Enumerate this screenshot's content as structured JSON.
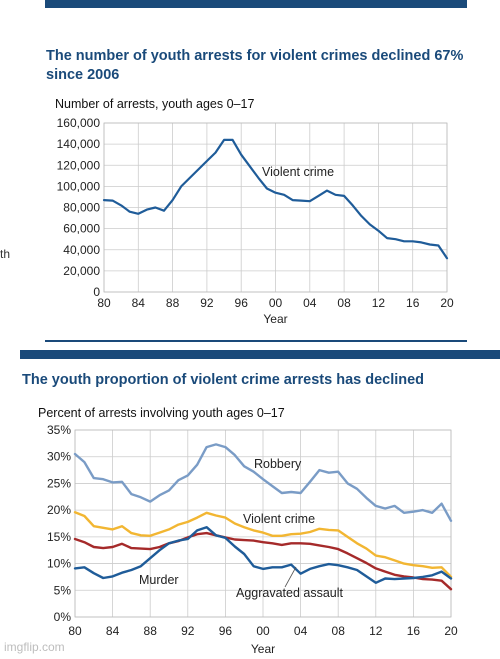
{
  "colors": {
    "header_blue": "#1a4a7a",
    "line_blue": "#1f5c99",
    "robbery": "#7a9cc6",
    "violent": "#f2b632",
    "aggravated": "#a52a2a",
    "murder": "#1f5c99",
    "grid": "#cccccc"
  },
  "page": {
    "left_fragment": "th",
    "watermark": "imgflip.com"
  },
  "chart_data": [
    {
      "type": "line",
      "title": "The number of youth arrests for violent crimes declined 67% since 2006",
      "subtitle": "Number of arrests, youth ages 0–17",
      "xlabel": "Year",
      "ylabel": "",
      "xlim": [
        80,
        120
      ],
      "ylim": [
        0,
        160000
      ],
      "x_ticks": [
        "80",
        "84",
        "88",
        "92",
        "96",
        "00",
        "04",
        "08",
        "12",
        "16",
        "20"
      ],
      "y_ticks": [
        "0",
        "20,000",
        "40,000",
        "60,000",
        "80,000",
        "100,000",
        "120,000",
        "140,000",
        "160,000"
      ],
      "grid": true,
      "series": [
        {
          "name": "Violent crime",
          "x": [
            80,
            81,
            82,
            83,
            84,
            85,
            86,
            87,
            88,
            89,
            90,
            91,
            92,
            93,
            94,
            95,
            96,
            97,
            98,
            99,
            100,
            101,
            102,
            103,
            104,
            105,
            106,
            107,
            108,
            109,
            110,
            111,
            112,
            113,
            114,
            115,
            116,
            117,
            118,
            119,
            120
          ],
          "values": [
            87000,
            86500,
            82000,
            76000,
            74000,
            78000,
            80000,
            77000,
            87000,
            100000,
            108000,
            116000,
            124000,
            132000,
            144000,
            144000,
            130000,
            119000,
            108000,
            98000,
            94000,
            92000,
            87000,
            86500,
            86000,
            91000,
            96000,
            92000,
            91000,
            82000,
            72000,
            64000,
            58000,
            51000,
            50000,
            48000,
            48000,
            47000,
            45000,
            44000,
            32000
          ]
        }
      ]
    },
    {
      "type": "line",
      "title": "The youth proportion of violent crime arrests has declined",
      "subtitle": "Percent of arrests involving youth ages 0–17",
      "xlabel": "Year",
      "ylabel": "",
      "xlim": [
        80,
        120
      ],
      "ylim": [
        0,
        35
      ],
      "x_ticks": [
        "80",
        "84",
        "88",
        "92",
        "96",
        "00",
        "04",
        "08",
        "12",
        "16",
        "20"
      ],
      "y_ticks": [
        "0%",
        "5%",
        "10%",
        "15%",
        "20%",
        "25%",
        "30%",
        "35%"
      ],
      "grid": true,
      "series": [
        {
          "name": "Robbery",
          "x": [
            80,
            81,
            82,
            83,
            84,
            85,
            86,
            87,
            88,
            89,
            90,
            91,
            92,
            93,
            94,
            95,
            96,
            97,
            98,
            99,
            100,
            101,
            102,
            103,
            104,
            105,
            106,
            107,
            108,
            109,
            110,
            111,
            112,
            113,
            114,
            115,
            116,
            117,
            118,
            119,
            120
          ],
          "values": [
            30.5,
            29,
            26,
            25.8,
            25.2,
            25.3,
            23,
            22.4,
            21.6,
            22.8,
            23.7,
            25.6,
            26.5,
            28.5,
            31.8,
            32.3,
            31.8,
            30.3,
            28.2,
            27.2,
            25.8,
            24.5,
            23.2,
            23.4,
            23.2,
            25.3,
            27.5,
            27,
            27.2,
            25,
            24,
            22.3,
            20.8,
            20.3,
            20.8,
            19.5,
            19.7,
            20,
            19.5,
            21.2,
            18
          ]
        },
        {
          "name": "Violent crime",
          "x": [
            80,
            81,
            82,
            83,
            84,
            85,
            86,
            87,
            88,
            89,
            90,
            91,
            92,
            93,
            94,
            95,
            96,
            97,
            98,
            99,
            100,
            101,
            102,
            103,
            104,
            105,
            106,
            107,
            108,
            109,
            110,
            111,
            112,
            113,
            114,
            115,
            116,
            117,
            118,
            119,
            120
          ],
          "values": [
            19.6,
            18.9,
            17,
            16.7,
            16.4,
            17,
            15.7,
            15.3,
            15.2,
            15.8,
            16.4,
            17.3,
            17.8,
            18.6,
            19.5,
            19,
            18.6,
            17.5,
            16.8,
            16.2,
            15.8,
            15.2,
            15.2,
            15.5,
            15.6,
            15.9,
            16.5,
            16.3,
            16.2,
            15,
            13.8,
            12.8,
            11.5,
            11.2,
            10.6,
            10,
            9.7,
            9.5,
            9.2,
            9.3,
            7.5
          ]
        },
        {
          "name": "Aggravated assault",
          "x": [
            80,
            81,
            82,
            83,
            84,
            85,
            86,
            87,
            88,
            89,
            90,
            91,
            92,
            93,
            94,
            95,
            96,
            97,
            98,
            99,
            100,
            101,
            102,
            103,
            104,
            105,
            106,
            107,
            108,
            109,
            110,
            111,
            112,
            113,
            114,
            115,
            116,
            117,
            118,
            119,
            120
          ],
          "values": [
            14.6,
            14,
            13.1,
            12.9,
            13.1,
            13.7,
            12.9,
            12.8,
            12.7,
            13.1,
            13.8,
            14.2,
            14.9,
            15.5,
            15.7,
            15.3,
            14.9,
            14.5,
            14.4,
            14.3,
            14,
            13.8,
            13.5,
            13.8,
            13.8,
            13.7,
            13.4,
            13.1,
            12.7,
            11.9,
            11,
            10.1,
            9.1,
            8.5,
            7.9,
            7.6,
            7.4,
            7.1,
            7,
            6.8,
            5.2
          ]
        },
        {
          "name": "Murder",
          "x": [
            80,
            81,
            82,
            83,
            84,
            85,
            86,
            87,
            88,
            89,
            90,
            91,
            92,
            93,
            94,
            95,
            96,
            97,
            98,
            99,
            100,
            101,
            102,
            103,
            104,
            105,
            106,
            107,
            108,
            109,
            110,
            111,
            112,
            113,
            114,
            115,
            116,
            117,
            118,
            119,
            120
          ],
          "values": [
            9.1,
            9.3,
            8.2,
            7.3,
            7.6,
            8.3,
            8.8,
            9.5,
            11,
            12.5,
            13.8,
            14.3,
            14.6,
            16.2,
            16.8,
            15.3,
            14.8,
            13.2,
            11.8,
            9.5,
            9,
            9.3,
            9.3,
            9.8,
            8.1,
            9,
            9.5,
            9.9,
            9.7,
            9.3,
            8.8,
            7.6,
            6.4,
            7.2,
            7.1,
            7.2,
            7.3,
            7.5,
            7.8,
            8.5,
            7.2
          ]
        }
      ]
    }
  ]
}
